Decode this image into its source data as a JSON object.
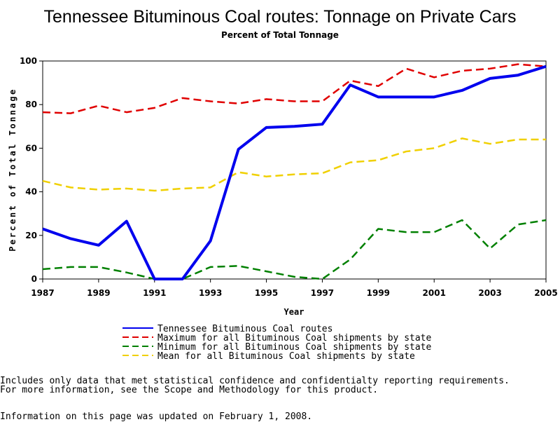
{
  "chart_data": {
    "type": "line",
    "title": "Tennessee Bituminous Coal routes: Tonnage on Private Cars",
    "subtitle": "Percent of Total Tonnage",
    "xlabel": "Year",
    "ylabel": "Percent of Total Tonnage",
    "xlim": [
      1987,
      2005
    ],
    "ylim": [
      0,
      100
    ],
    "xticks": [
      "1987",
      "1989",
      "1991",
      "1993",
      "1995",
      "1997",
      "1999",
      "2001",
      "2003",
      "2005"
    ],
    "yticks": [
      "0",
      "20",
      "40",
      "60",
      "80",
      "100"
    ],
    "x": [
      1987,
      1988,
      1989,
      1990,
      1991,
      1992,
      1993,
      1994,
      1995,
      1996,
      1997,
      1998,
      1999,
      2000,
      2001,
      2002,
      2003,
      2004,
      2005
    ],
    "series": [
      {
        "name": "Tennessee Bituminous Coal routes",
        "color": "#0000ee",
        "style": "solid",
        "values": [
          23,
          18.5,
          15.5,
          26.5,
          0,
          0,
          17.5,
          59.5,
          69.5,
          70,
          71,
          89,
          83.5,
          83.5,
          83.5,
          86.5,
          92,
          93.5,
          97.5
        ]
      },
      {
        "name": "Maximum for all Bituminous Coal shipments by state",
        "color": "#e00000",
        "style": "dashed",
        "values": [
          76.5,
          76,
          79.5,
          76.5,
          78.5,
          83,
          81.5,
          80.5,
          82.5,
          81.5,
          81.5,
          91,
          88.5,
          96.5,
          92.5,
          95.5,
          96.5,
          98.5,
          97.5
        ]
      },
      {
        "name": "Minimum for all Bituminous Coal shipments by state",
        "color": "#008000",
        "style": "dashed",
        "values": [
          4.5,
          5.5,
          5.5,
          3,
          0,
          0,
          5.5,
          6,
          3.5,
          1,
          0,
          9,
          23,
          21.5,
          21.5,
          27,
          14,
          25,
          27
        ]
      },
      {
        "name": "Mean for all Bituminous Coal shipments by state",
        "color": "#f0d000",
        "style": "dashed",
        "values": [
          45,
          42,
          41,
          41.5,
          40.5,
          41.5,
          42,
          49,
          47,
          48,
          48.5,
          53.5,
          54.5,
          58.5,
          60,
          64.5,
          62,
          64,
          64
        ]
      }
    ]
  },
  "footnotes": {
    "line1": "Includes only data that met statistical confidence and confidentialty reporting requirements.",
    "line2": "For more information, see the Scope and Methodology for this product.",
    "line3": "Information on this page was updated on February 1, 2008."
  }
}
